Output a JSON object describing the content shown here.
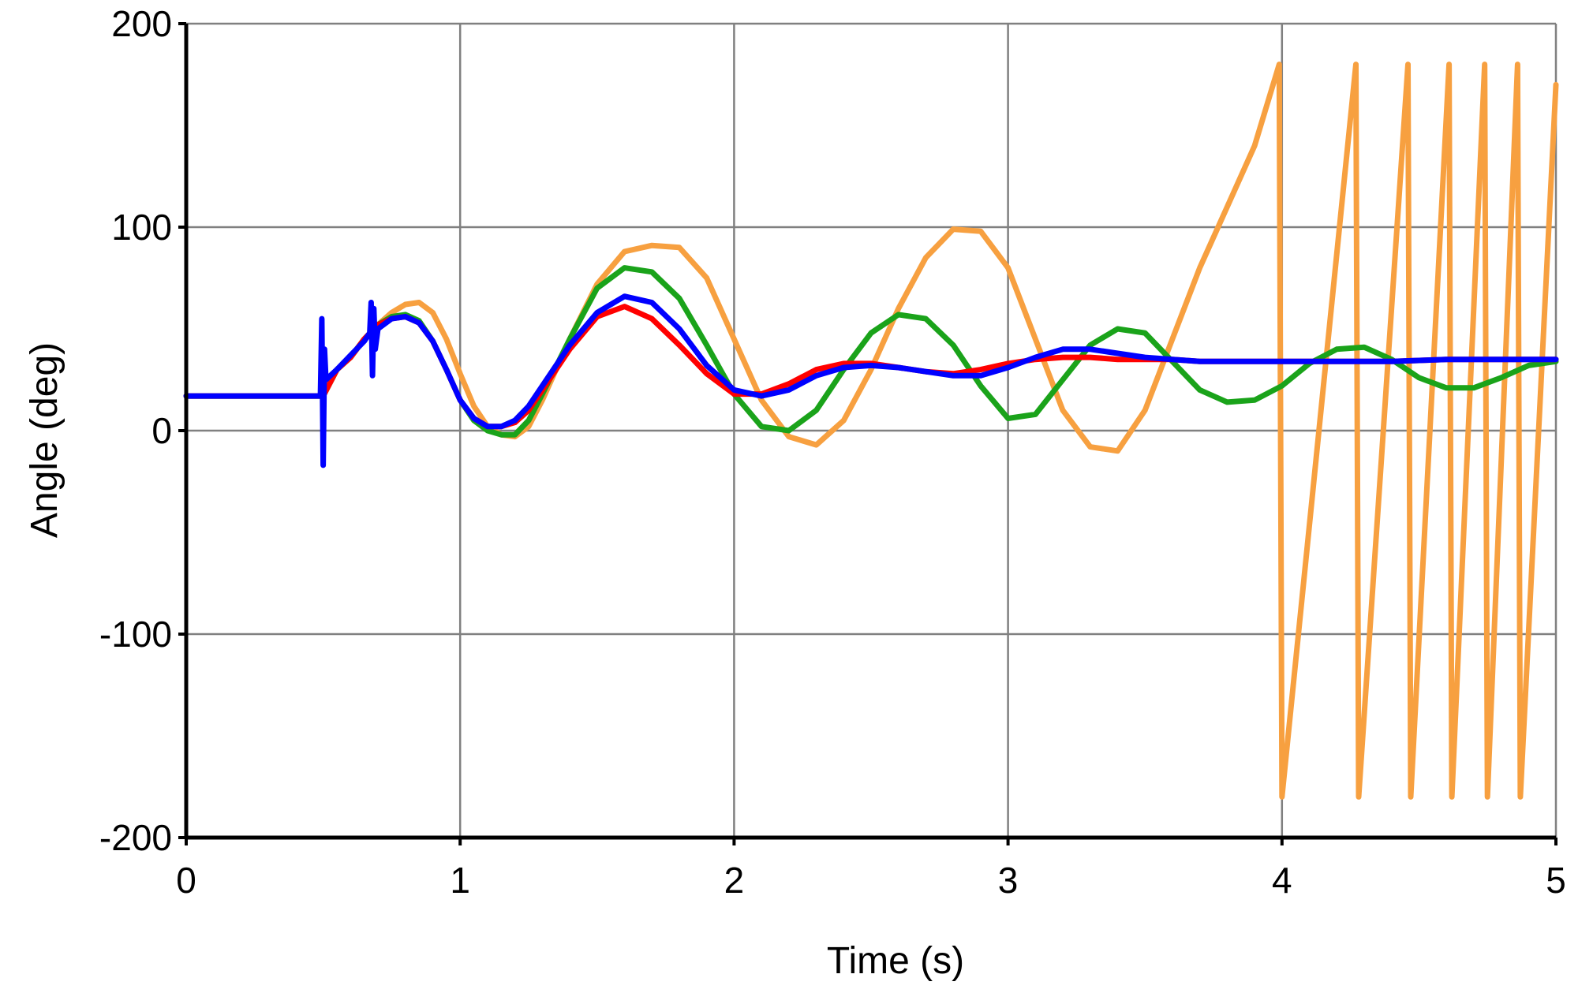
{
  "chart_data": {
    "type": "line",
    "xlabel": "Time (s)",
    "ylabel": "Angle (deg)",
    "xlim": [
      0,
      5
    ],
    "ylim": [
      -200,
      200
    ],
    "x_ticks": [
      0,
      1,
      2,
      3,
      4,
      5
    ],
    "y_ticks": [
      200,
      100,
      0,
      -100,
      -200
    ],
    "x_tick_labels": [
      "0",
      "1",
      "2",
      "3",
      "4",
      "5"
    ],
    "y_tick_labels": [
      "200",
      "100",
      "0",
      "-100",
      "-200"
    ],
    "grid": true,
    "legend": "none",
    "series": [
      {
        "color": "#f7a040",
        "x": [
          0,
          0.5,
          0.55,
          0.6,
          0.65,
          0.7,
          0.75,
          0.8,
          0.85,
          0.9,
          0.95,
          1.0,
          1.05,
          1.1,
          1.15,
          1.2,
          1.25,
          1.3,
          1.4,
          1.5,
          1.6,
          1.7,
          1.8,
          1.9,
          2.0,
          2.1,
          2.2,
          2.3,
          2.4,
          2.5,
          2.6,
          2.7,
          2.8,
          2.9,
          3.0,
          3.1,
          3.2,
          3.3,
          3.4,
          3.5,
          3.6,
          3.7,
          3.8,
          3.9,
          3.99,
          4.0,
          4.27,
          4.28,
          4.46,
          4.47,
          4.61,
          4.62,
          4.74,
          4.75,
          4.86,
          4.87,
          5.0
        ],
        "y": [
          17,
          17,
          30,
          36,
          45,
          52,
          58,
          62,
          63,
          58,
          45,
          28,
          12,
          2,
          -2,
          -3,
          2,
          15,
          45,
          72,
          88,
          91,
          90,
          75,
          45,
          15,
          -3,
          -7,
          5,
          30,
          60,
          85,
          99,
          98,
          80,
          45,
          10,
          -8,
          -10,
          10,
          45,
          80,
          110,
          140,
          180,
          -180,
          180,
          -180,
          180,
          -180,
          180,
          -180,
          180,
          -180,
          180,
          -180,
          170
        ]
      },
      {
        "color": "#1aa31a",
        "x": [
          0,
          0.5,
          0.55,
          0.6,
          0.65,
          0.7,
          0.75,
          0.8,
          0.85,
          0.9,
          0.95,
          1.0,
          1.05,
          1.1,
          1.15,
          1.2,
          1.25,
          1.3,
          1.4,
          1.5,
          1.6,
          1.7,
          1.8,
          1.9,
          2.0,
          2.1,
          2.2,
          2.3,
          2.4,
          2.5,
          2.6,
          2.7,
          2.8,
          2.9,
          3.0,
          3.1,
          3.2,
          3.3,
          3.4,
          3.5,
          3.6,
          3.7,
          3.8,
          3.9,
          4.0,
          4.1,
          4.2,
          4.3,
          4.4,
          4.5,
          4.6,
          4.7,
          4.8,
          4.9,
          5.0
        ],
        "y": [
          17,
          17,
          30,
          36,
          45,
          52,
          56,
          57,
          54,
          44,
          30,
          15,
          5,
          0,
          -2,
          -2,
          5,
          18,
          45,
          70,
          80,
          78,
          65,
          42,
          18,
          2,
          0,
          10,
          30,
          48,
          57,
          55,
          42,
          22,
          6,
          8,
          25,
          42,
          50,
          48,
          34,
          20,
          14,
          15,
          22,
          33,
          40,
          41,
          35,
          26,
          21,
          21,
          26,
          32,
          34
        ]
      },
      {
        "color": "#ff0000",
        "x": [
          0,
          0.5,
          0.55,
          0.6,
          0.65,
          0.7,
          0.75,
          0.8,
          0.85,
          0.9,
          0.95,
          1.0,
          1.05,
          1.1,
          1.15,
          1.2,
          1.25,
          1.3,
          1.4,
          1.5,
          1.6,
          1.7,
          1.8,
          1.9,
          2.0,
          2.1,
          2.2,
          2.3,
          2.4,
          2.5,
          2.6,
          2.7,
          2.8,
          2.9,
          3.0,
          3.1,
          3.2,
          3.3,
          3.4,
          3.5,
          3.6,
          3.7,
          3.8,
          3.9,
          4.0,
          4.2,
          4.4,
          4.6,
          4.8,
          5.0
        ],
        "y": [
          17,
          17,
          30,
          36,
          45,
          52,
          55,
          56,
          53,
          44,
          30,
          15,
          6,
          2,
          2,
          4,
          10,
          20,
          40,
          56,
          61,
          55,
          42,
          28,
          18,
          18,
          23,
          30,
          33,
          33,
          31,
          29,
          28,
          30,
          33,
          35,
          36,
          36,
          35,
          35,
          35,
          34,
          34,
          34,
          34,
          34,
          34,
          35,
          35,
          35
        ]
      },
      {
        "color": "#0000ff",
        "x": [
          0,
          0.48,
          0.49,
          0.495,
          0.5,
          0.505,
          0.51,
          0.55,
          0.6,
          0.65,
          0.67,
          0.675,
          0.68,
          0.685,
          0.69,
          0.7,
          0.75,
          0.8,
          0.85,
          0.9,
          0.95,
          1.0,
          1.05,
          1.1,
          1.15,
          1.2,
          1.25,
          1.3,
          1.4,
          1.5,
          1.6,
          1.7,
          1.8,
          1.9,
          2.0,
          2.1,
          2.2,
          2.3,
          2.4,
          2.5,
          2.6,
          2.7,
          2.8,
          2.9,
          3.0,
          3.1,
          3.2,
          3.3,
          3.4,
          3.5,
          3.6,
          3.7,
          3.8,
          3.9,
          4.0,
          4.2,
          4.4,
          4.6,
          4.8,
          5.0
        ],
        "y": [
          17,
          17,
          17,
          55,
          -17,
          40,
          25,
          30,
          37,
          44,
          48,
          63,
          27,
          60,
          40,
          50,
          55,
          56,
          53,
          44,
          30,
          15,
          6,
          2,
          2,
          5,
          12,
          22,
          42,
          58,
          66,
          63,
          50,
          32,
          20,
          17,
          20,
          27,
          31,
          32,
          31,
          29,
          27,
          27,
          31,
          36,
          40,
          40,
          38,
          36,
          35,
          34,
          34,
          34,
          34,
          34,
          34,
          35,
          35,
          35
        ]
      }
    ]
  }
}
